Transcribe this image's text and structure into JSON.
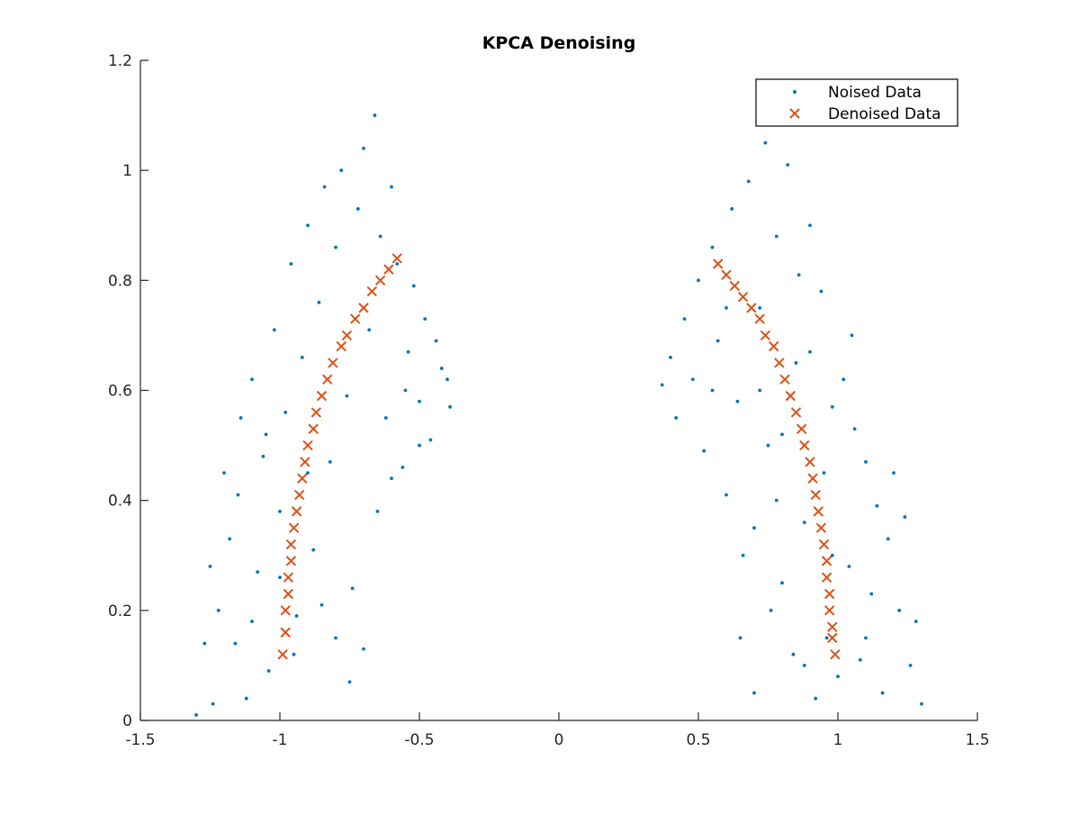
{
  "chart_data": {
    "type": "scatter",
    "title": "KPCA Denoising",
    "xlabel": "",
    "ylabel": "",
    "xlim": [
      -1.5,
      1.5
    ],
    "ylim": [
      0,
      1.2
    ],
    "xticks": [
      "-1.5",
      "-1",
      "-0.5",
      "0",
      "0.5",
      "1",
      "1.5"
    ],
    "yticks": [
      "0",
      "0.2",
      "0.4",
      "0.6",
      "0.8",
      "1",
      "1.2"
    ],
    "grid": false,
    "legend_position": "top-right",
    "series": [
      {
        "name": "Noised Data",
        "marker": "dot",
        "color": "#0072BD",
        "points": [
          [
            -1.3,
            0.01
          ],
          [
            -1.27,
            0.14
          ],
          [
            -1.24,
            0.03
          ],
          [
            -1.22,
            0.2
          ],
          [
            -1.2,
            0.45
          ],
          [
            -1.18,
            0.33
          ],
          [
            -1.16,
            0.14
          ],
          [
            -1.14,
            0.55
          ],
          [
            -1.12,
            0.04
          ],
          [
            -1.1,
            0.62
          ],
          [
            -1.08,
            0.27
          ],
          [
            -1.06,
            0.48
          ],
          [
            -1.04,
            0.09
          ],
          [
            -1.02,
            0.71
          ],
          [
            -1.0,
            0.38
          ],
          [
            -0.98,
            0.56
          ],
          [
            -0.96,
            0.83
          ],
          [
            -0.94,
            0.19
          ],
          [
            -0.92,
            0.66
          ],
          [
            -0.9,
            0.9
          ],
          [
            -0.88,
            0.31
          ],
          [
            -0.86,
            0.76
          ],
          [
            -0.84,
            0.97
          ],
          [
            -0.82,
            0.47
          ],
          [
            -0.8,
            0.86
          ],
          [
            -0.78,
            1.0
          ],
          [
            -0.76,
            0.59
          ],
          [
            -0.74,
            0.24
          ],
          [
            -0.72,
            0.93
          ],
          [
            -0.7,
            1.04
          ],
          [
            -0.68,
            0.71
          ],
          [
            -0.66,
            1.1
          ],
          [
            -0.64,
            0.88
          ],
          [
            -0.62,
            0.55
          ],
          [
            -0.6,
            0.97
          ],
          [
            -0.58,
            0.83
          ],
          [
            -0.56,
            0.46
          ],
          [
            -0.54,
            0.67
          ],
          [
            -0.52,
            0.79
          ],
          [
            -0.5,
            0.58
          ],
          [
            -0.48,
            0.73
          ],
          [
            -0.46,
            0.51
          ],
          [
            -0.44,
            0.69
          ],
          [
            -0.42,
            0.64
          ],
          [
            -0.4,
            0.62
          ],
          [
            -0.39,
            0.57
          ],
          [
            -1.25,
            0.28
          ],
          [
            -1.15,
            0.41
          ],
          [
            -1.05,
            0.52
          ],
          [
            -0.95,
            0.12
          ],
          [
            -0.85,
            0.21
          ],
          [
            -0.75,
            0.07
          ],
          [
            -0.65,
            0.38
          ],
          [
            -0.55,
            0.6
          ],
          [
            -1.1,
            0.18
          ],
          [
            -1.0,
            0.26
          ],
          [
            -0.9,
            0.45
          ],
          [
            -0.8,
            0.15
          ],
          [
            -0.7,
            0.13
          ],
          [
            -0.6,
            0.44
          ],
          [
            -0.5,
            0.5
          ],
          [
            0.37,
            0.61
          ],
          [
            0.4,
            0.66
          ],
          [
            0.42,
            0.55
          ],
          [
            0.45,
            0.73
          ],
          [
            0.48,
            0.62
          ],
          [
            0.5,
            0.8
          ],
          [
            0.52,
            0.49
          ],
          [
            0.55,
            0.86
          ],
          [
            0.57,
            0.69
          ],
          [
            0.6,
            0.41
          ],
          [
            0.62,
            0.93
          ],
          [
            0.64,
            0.58
          ],
          [
            0.66,
            0.3
          ],
          [
            0.68,
            0.98
          ],
          [
            0.7,
            0.05
          ],
          [
            0.72,
            0.75
          ],
          [
            0.74,
            1.05
          ],
          [
            0.76,
            0.2
          ],
          [
            0.78,
            0.88
          ],
          [
            0.8,
            0.52
          ],
          [
            0.82,
            1.01
          ],
          [
            0.84,
            0.12
          ],
          [
            0.86,
            0.81
          ],
          [
            0.88,
            0.36
          ],
          [
            0.9,
            0.67
          ],
          [
            0.92,
            0.04
          ],
          [
            0.94,
            0.78
          ],
          [
            0.96,
            0.15
          ],
          [
            0.98,
            0.57
          ],
          [
            1.0,
            0.08
          ],
          [
            1.02,
            0.62
          ],
          [
            1.04,
            0.28
          ],
          [
            1.06,
            0.53
          ],
          [
            1.08,
            0.11
          ],
          [
            1.1,
            0.47
          ],
          [
            1.12,
            0.23
          ],
          [
            1.14,
            0.39
          ],
          [
            1.16,
            0.05
          ],
          [
            1.18,
            0.33
          ],
          [
            1.2,
            0.45
          ],
          [
            1.22,
            0.2
          ],
          [
            1.24,
            0.37
          ],
          [
            1.26,
            0.1
          ],
          [
            1.28,
            0.18
          ],
          [
            1.3,
            0.03
          ],
          [
            0.65,
            0.15
          ],
          [
            0.7,
            0.35
          ],
          [
            0.75,
            0.5
          ],
          [
            0.8,
            0.25
          ],
          [
            0.85,
            0.65
          ],
          [
            0.9,
            0.9
          ],
          [
            0.95,
            0.45
          ],
          [
            1.05,
            0.7
          ],
          [
            0.6,
            0.75
          ],
          [
            0.55,
            0.6
          ],
          [
            0.72,
            0.6
          ],
          [
            0.88,
            0.1
          ],
          [
            0.98,
            0.3
          ],
          [
            1.1,
            0.15
          ],
          [
            0.78,
            0.4
          ]
        ]
      },
      {
        "name": "Denoised Data",
        "marker": "x",
        "color": "#D95319",
        "points": [
          [
            -0.99,
            0.12
          ],
          [
            -0.98,
            0.16
          ],
          [
            -0.98,
            0.2
          ],
          [
            -0.97,
            0.23
          ],
          [
            -0.97,
            0.26
          ],
          [
            -0.96,
            0.29
          ],
          [
            -0.96,
            0.32
          ],
          [
            -0.95,
            0.35
          ],
          [
            -0.94,
            0.38
          ],
          [
            -0.93,
            0.41
          ],
          [
            -0.92,
            0.44
          ],
          [
            -0.91,
            0.47
          ],
          [
            -0.9,
            0.5
          ],
          [
            -0.88,
            0.53
          ],
          [
            -0.87,
            0.56
          ],
          [
            -0.85,
            0.59
          ],
          [
            -0.83,
            0.62
          ],
          [
            -0.81,
            0.65
          ],
          [
            -0.78,
            0.68
          ],
          [
            -0.76,
            0.7
          ],
          [
            -0.73,
            0.73
          ],
          [
            -0.7,
            0.75
          ],
          [
            -0.67,
            0.78
          ],
          [
            -0.64,
            0.8
          ],
          [
            -0.61,
            0.82
          ],
          [
            -0.58,
            0.84
          ],
          [
            0.57,
            0.83
          ],
          [
            0.6,
            0.81
          ],
          [
            0.63,
            0.79
          ],
          [
            0.66,
            0.77
          ],
          [
            0.69,
            0.75
          ],
          [
            0.72,
            0.73
          ],
          [
            0.74,
            0.7
          ],
          [
            0.77,
            0.68
          ],
          [
            0.79,
            0.65
          ],
          [
            0.81,
            0.62
          ],
          [
            0.83,
            0.59
          ],
          [
            0.85,
            0.56
          ],
          [
            0.87,
            0.53
          ],
          [
            0.88,
            0.5
          ],
          [
            0.9,
            0.47
          ],
          [
            0.91,
            0.44
          ],
          [
            0.92,
            0.41
          ],
          [
            0.93,
            0.38
          ],
          [
            0.94,
            0.35
          ],
          [
            0.95,
            0.32
          ],
          [
            0.96,
            0.29
          ],
          [
            0.96,
            0.26
          ],
          [
            0.97,
            0.23
          ],
          [
            0.97,
            0.2
          ],
          [
            0.98,
            0.17
          ],
          [
            0.98,
            0.15
          ],
          [
            0.99,
            0.12
          ]
        ]
      }
    ],
    "axis_color": "#262626",
    "legend_border_color": "#000000"
  }
}
